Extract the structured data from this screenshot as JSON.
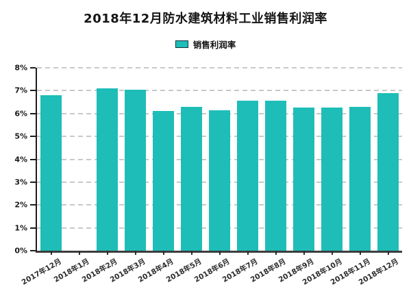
{
  "header": {
    "title": "2018年12月防水建筑材料工业销售利润率"
  },
  "legend": {
    "label": "销售利润率"
  },
  "colors": {
    "bar": "#1ebdb8",
    "legend_border": "#17333d",
    "grid": "#c8c8c8",
    "axis": "#1c1c1c",
    "tick": "#2b2b2b",
    "text": "#151515"
  },
  "chart_data": {
    "type": "bar",
    "title": "2018年12月防水建筑材料工业销售利润率",
    "categories": [
      "2017年12月",
      "2018年1月",
      "2018年2月",
      "2018年3月",
      "2018年4月",
      "2018年5月",
      "2018年6月",
      "2018年7月",
      "2018年8月",
      "2018年9月",
      "2018年10月",
      "2018年11月",
      "2018年12月"
    ],
    "series": [
      {
        "name": "销售利润率",
        "values": [
          6.8,
          null,
          7.1,
          7.05,
          6.1,
          6.3,
          6.15,
          6.55,
          6.55,
          6.25,
          6.25,
          6.3,
          6.9
        ]
      }
    ],
    "unit": "%",
    "xlabel": "",
    "ylabel": "",
    "ylim": [
      0,
      8
    ],
    "ytick_step": 1,
    "ytick_labels": [
      "0%",
      "1%",
      "2%",
      "3%",
      "4%",
      "5%",
      "6%",
      "7%",
      "8%"
    ],
    "grid": "horizontal-dashed",
    "legend_position": "top",
    "bar_color": "#1ebdb8",
    "note": "2018年1月 has no bar (missing value)"
  }
}
